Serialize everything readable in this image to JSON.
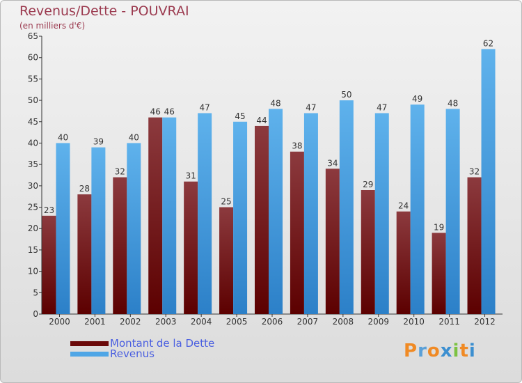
{
  "chart_data": {
    "type": "bar",
    "title": "Revenus/Dette - POUVRAI",
    "subtitle": "(en milliers d'€)",
    "categories": [
      "2000",
      "2001",
      "2002",
      "2003",
      "2004",
      "2005",
      "2006",
      "2007",
      "2008",
      "2009",
      "2010",
      "2011",
      "2012"
    ],
    "series": [
      {
        "name": "Montant de la Dette",
        "color": "#7a1414",
        "values": [
          23,
          28,
          32,
          46,
          31,
          25,
          44,
          38,
          34,
          29,
          24,
          19,
          32
        ]
      },
      {
        "name": "Revenus",
        "color": "#4fa6e6",
        "values": [
          40,
          39,
          40,
          46,
          47,
          45,
          48,
          47,
          50,
          47,
          49,
          48,
          62
        ]
      }
    ],
    "ylim": [
      0,
      65
    ],
    "yticks": [
      0,
      5,
      10,
      15,
      20,
      25,
      30,
      35,
      40,
      45,
      50,
      55,
      60,
      65
    ],
    "grid": false,
    "legend_position": "bottom-left"
  },
  "logo": {
    "text": "Proxiti",
    "letter_colors": [
      "#f08a24",
      "#5aa0d8",
      "#f08a24",
      "#3c8fd0",
      "#7cc242",
      "#f08a24",
      "#3c8fd0"
    ]
  }
}
